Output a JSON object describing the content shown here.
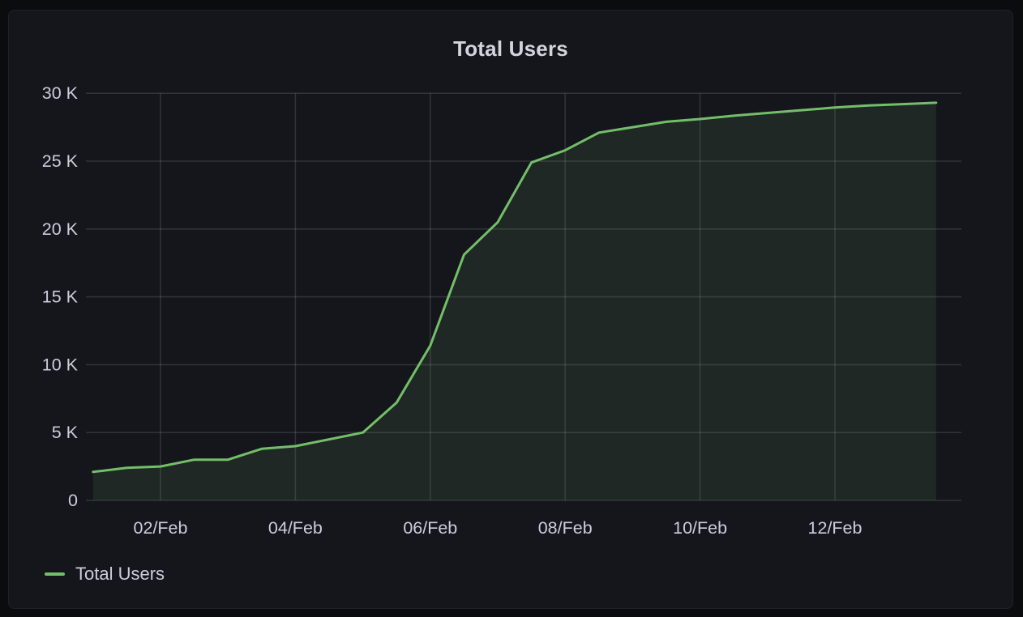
{
  "panel": {
    "title": "Total Users"
  },
  "legend": {
    "items": [
      {
        "label": "Total Users",
        "color": "#73BF69"
      }
    ]
  },
  "colors": {
    "page_background": "#0b0c0e",
    "panel_background": "#15161b",
    "panel_border": "#202127",
    "grid": "rgba(204, 212, 220, 0.15)",
    "axis_text": "#ccccdc",
    "title_text": "#d3d4dc",
    "line": "#73BF69",
    "fill": "rgba(115, 191, 105, 0.11)"
  },
  "chart_data": {
    "type": "area",
    "title": "Total Users",
    "series_name": "Total Users",
    "x_unit": "day of February (half-day sampling)",
    "x": [
      1,
      1.5,
      2,
      2.5,
      3,
      3.5,
      4,
      4.5,
      5,
      5.5,
      6,
      6.5,
      7,
      7.5,
      8,
      8.5,
      9,
      9.5,
      10,
      10.5,
      11,
      11.5,
      12,
      12.5,
      13,
      13.5
    ],
    "values": [
      2100,
      2400,
      2500,
      3000,
      3000,
      3800,
      4000,
      4500,
      5000,
      7200,
      11400,
      18100,
      20500,
      24900,
      25800,
      27100,
      27500,
      27900,
      28100,
      28350,
      28550,
      28750,
      28950,
      29100,
      29200,
      29300
    ],
    "x_tick_days": [
      2,
      4,
      6,
      8,
      10,
      12
    ],
    "x_tick_labels": [
      "02/Feb",
      "04/Feb",
      "06/Feb",
      "08/Feb",
      "10/Feb",
      "12/Feb"
    ],
    "y_ticks": [
      0,
      5000,
      10000,
      15000,
      20000,
      25000,
      30000
    ],
    "y_tick_labels": [
      "0",
      "5 K",
      "10 K",
      "15 K",
      "20 K",
      "25 K",
      "30 K"
    ],
    "ylim": [
      0,
      30000
    ],
    "xlim_days": [
      1,
      13.85
    ],
    "grid": true,
    "legend_position": "bottom-left",
    "line_color": "#73BF69",
    "fill_opacity": 0.11
  }
}
